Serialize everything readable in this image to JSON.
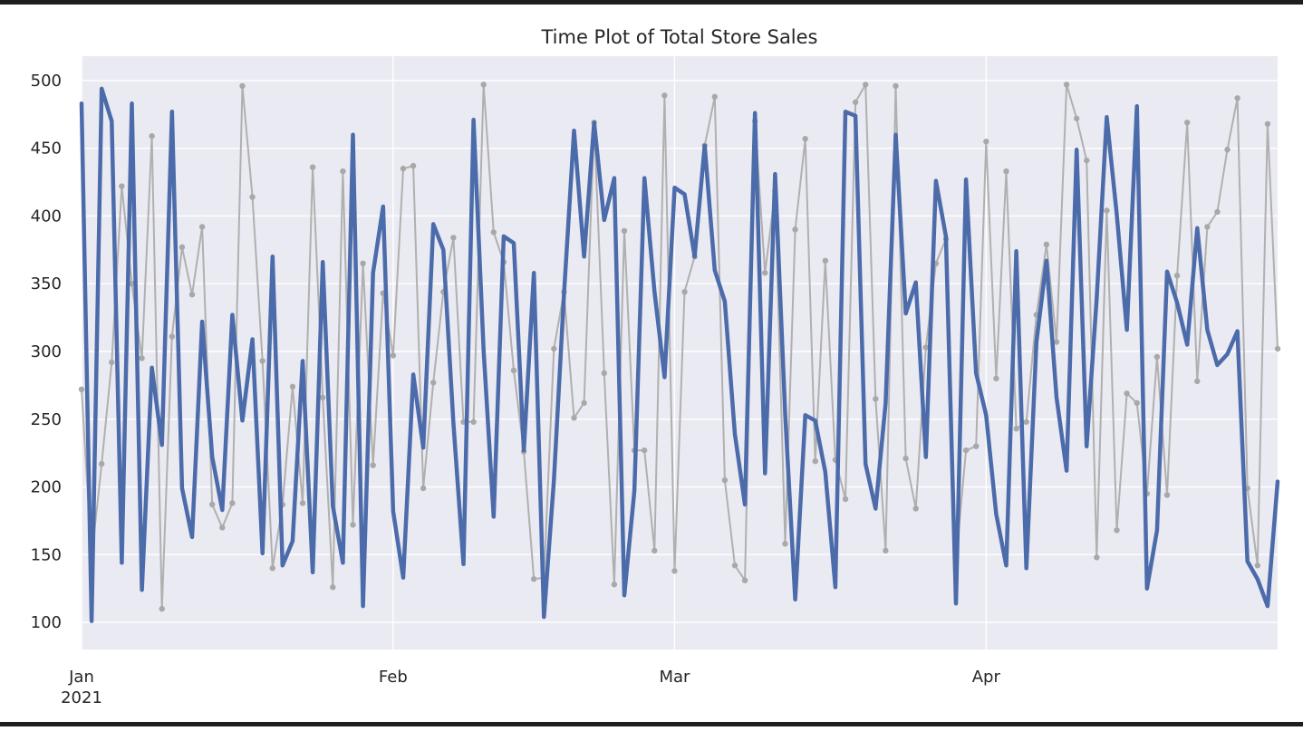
{
  "chart_data": {
    "type": "line",
    "title": "Time Plot of Total Store Sales",
    "xlabel": "",
    "ylabel": "",
    "ylim": [
      80,
      518
    ],
    "y_ticks": [
      100,
      150,
      200,
      250,
      300,
      350,
      400,
      450,
      500
    ],
    "x_start": "2021-01-01",
    "x_end": "2021-04-30",
    "x_ticks": [
      {
        "date": "2021-01-01",
        "label": "Jan",
        "sublabel": "2021"
      },
      {
        "date": "2021-02-01",
        "label": "Feb",
        "sublabel": ""
      },
      {
        "date": "2021-03-01",
        "label": "Mar",
        "sublabel": ""
      },
      {
        "date": "2021-04-01",
        "label": "Apr",
        "sublabel": ""
      }
    ],
    "grid": true,
    "background": "#eaeaf2",
    "series": [
      {
        "role": "daily",
        "color": "#b0b0b0",
        "markers": true,
        "values": [
          272,
          148,
          217,
          292,
          422,
          350,
          295,
          459,
          110,
          311,
          377,
          342,
          392,
          187,
          170,
          188,
          496,
          414,
          293,
          140,
          187,
          274,
          188,
          436,
          266,
          126,
          433,
          172,
          365,
          216,
          343,
          297,
          435,
          437,
          199,
          277,
          344,
          384,
          248,
          248,
          497,
          388,
          366,
          286,
          226,
          132,
          133,
          302,
          344,
          251,
          262,
          469,
          284,
          128,
          389,
          227,
          227,
          153,
          489,
          138,
          344,
          370,
          452,
          488,
          205,
          142,
          131,
          470,
          358,
          418,
          158,
          390,
          457,
          219,
          367,
          220,
          191,
          484,
          497,
          265,
          153,
          496,
          221,
          184,
          303,
          365,
          383,
          146,
          227,
          230,
          455,
          280,
          433,
          243,
          248,
          327,
          379,
          307,
          497,
          472,
          441,
          148,
          404,
          168,
          269,
          262,
          195,
          296,
          194,
          356,
          469,
          278,
          392,
          403,
          449,
          487,
          199,
          142,
          468,
          302
        ]
      },
      {
        "role": "smoothed",
        "color": "#4c6baa",
        "markers": false,
        "values": [
          483,
          101,
          494,
          470,
          144,
          483,
          124,
          288,
          231,
          477,
          199,
          163,
          322,
          222,
          183,
          327,
          249,
          309,
          151,
          370,
          142,
          160,
          293,
          137,
          366,
          186,
          144,
          460,
          112,
          358,
          407,
          182,
          133,
          283,
          229,
          394,
          375,
          247,
          143,
          471,
          301,
          178,
          385,
          380,
          227,
          358,
          104,
          205,
          342,
          463,
          370,
          469,
          397,
          428,
          120,
          197,
          428,
          344,
          281,
          421,
          416,
          370,
          452,
          360,
          337,
          239,
          187,
          476,
          210,
          431,
          254,
          117,
          253,
          249,
          211,
          126,
          477,
          474,
          217,
          184,
          262,
          460,
          328,
          351,
          222,
          426,
          385,
          114,
          427,
          284,
          253,
          180,
          142,
          374,
          140,
          307,
          367,
          266,
          212,
          449,
          230,
          339,
          473,
          401,
          316,
          481,
          125,
          168,
          359,
          336,
          305,
          391,
          316,
          290,
          298,
          315,
          145,
          132,
          112,
          204
        ]
      }
    ]
  }
}
